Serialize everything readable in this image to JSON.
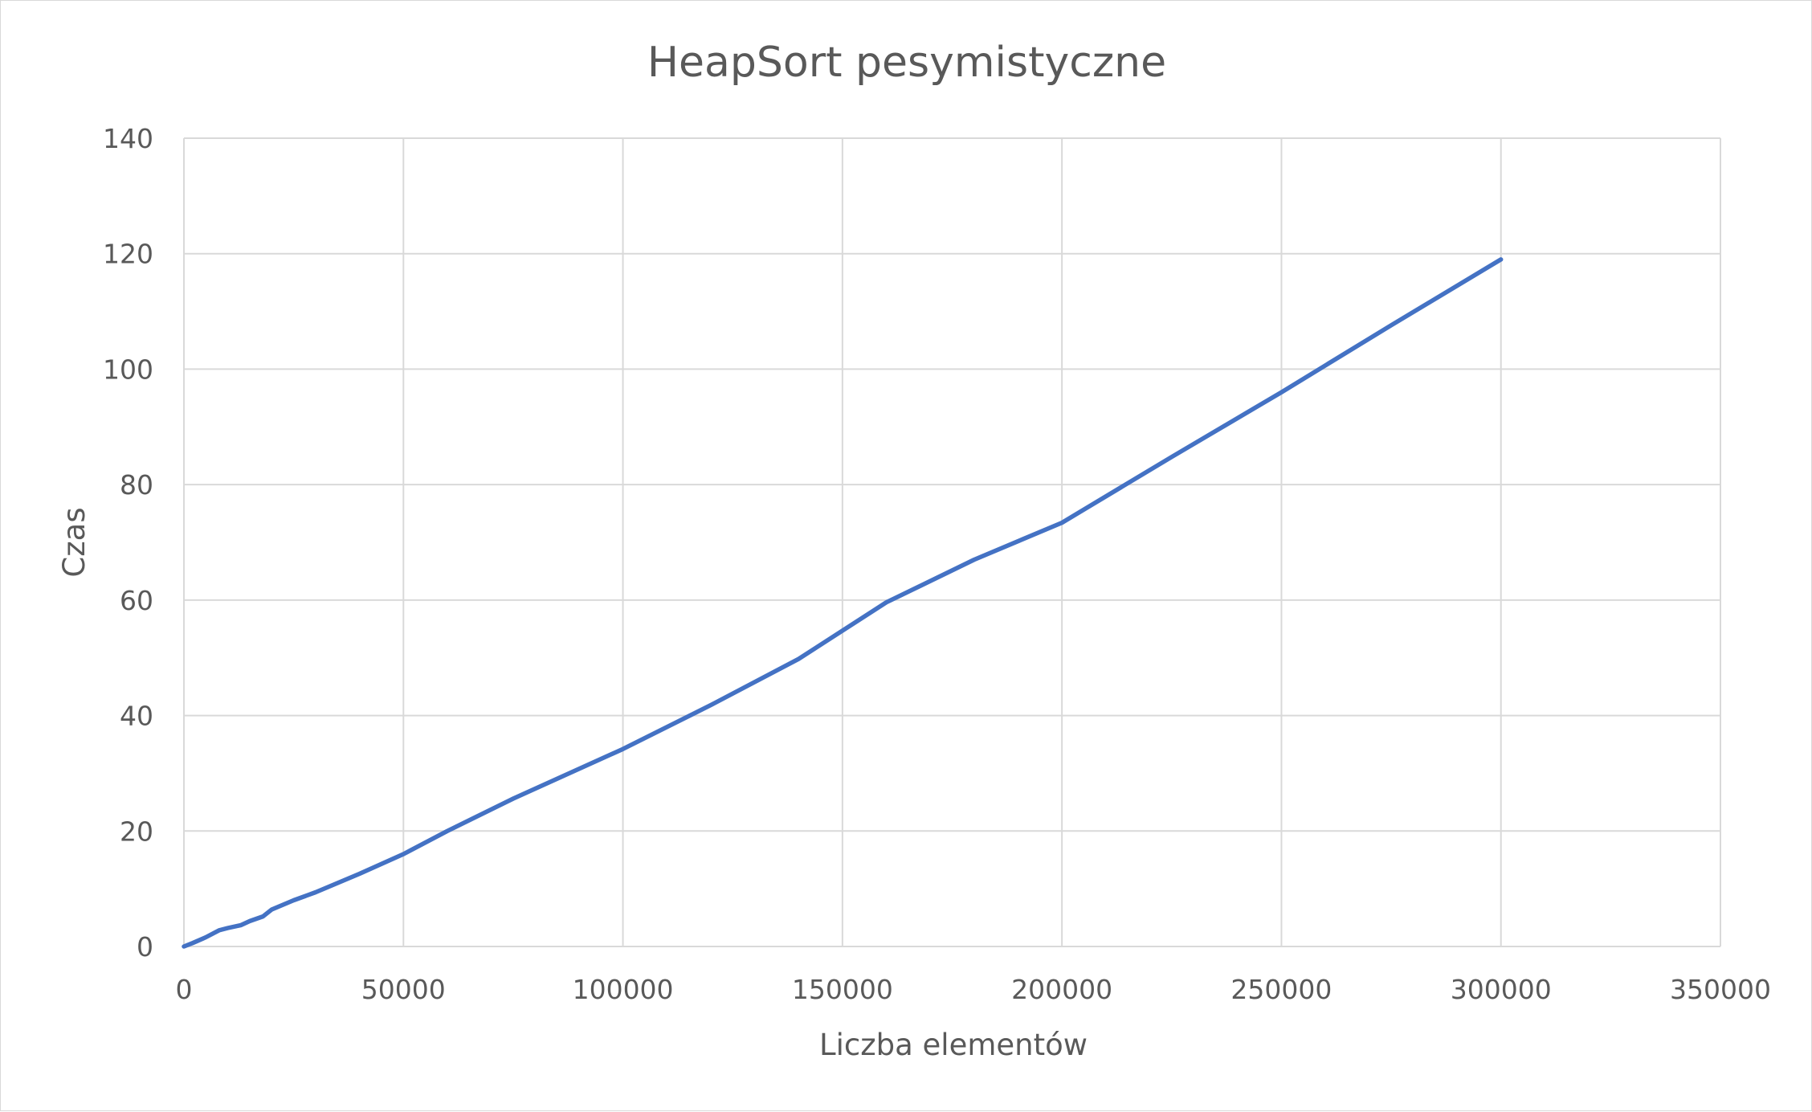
{
  "chart_data": {
    "type": "line",
    "title": "HeapSort pesymistyczne",
    "xlabel": "Liczba elementów",
    "ylabel": "Czas",
    "xlim": [
      0,
      350000
    ],
    "ylim": [
      0,
      140
    ],
    "x_ticks": [
      "0",
      "50000",
      "100000",
      "150000",
      "200000",
      "250000",
      "300000",
      "350000"
    ],
    "y_ticks": [
      "0",
      "20",
      "40",
      "60",
      "80",
      "100",
      "120",
      "140"
    ],
    "grid": true,
    "legend": "none",
    "color": "#4472c4",
    "series": [
      {
        "x": [
          0,
          2000,
          5000,
          8000,
          10000,
          13000,
          15000,
          18000,
          20000,
          25000,
          30000,
          40000,
          50000,
          60000,
          75000,
          100000,
          120000,
          140000,
          160000,
          180000,
          200000,
          225000,
          250000,
          275000,
          300000
        ],
        "values": [
          0,
          0.6,
          1.6,
          2.8,
          3.2,
          3.7,
          4.4,
          5.2,
          6.4,
          8,
          9.4,
          12.6,
          16,
          20,
          25.6,
          34.2,
          41.8,
          49.8,
          59.6,
          67,
          73.4,
          84.8,
          96,
          107.6,
          119
        ]
      }
    ]
  }
}
